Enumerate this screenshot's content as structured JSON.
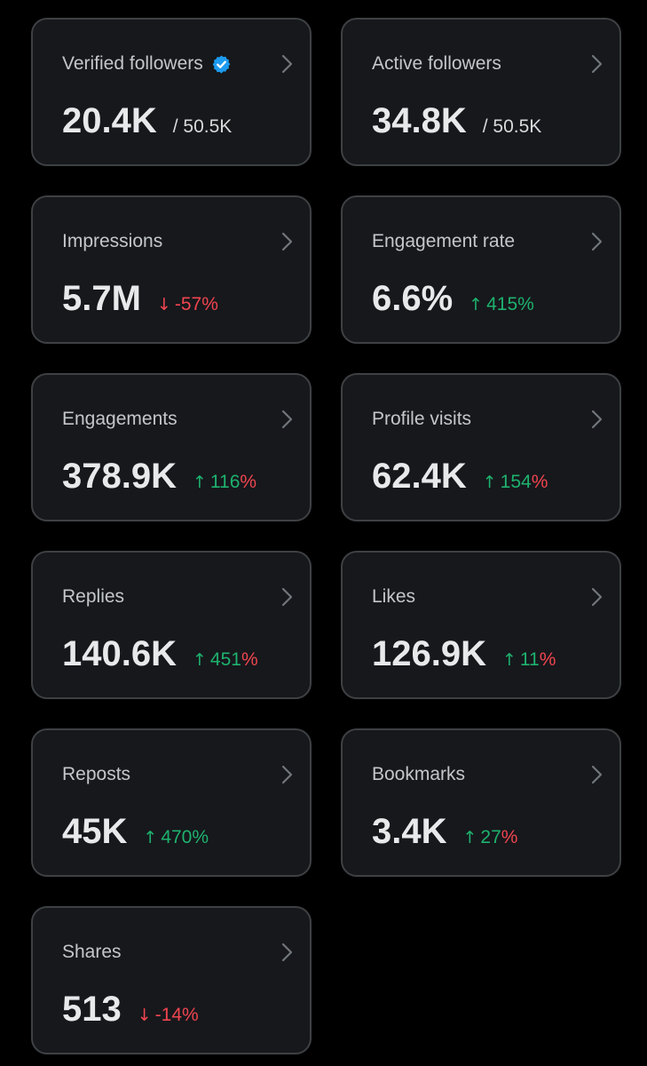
{
  "colors": {
    "background": "#000000",
    "card": "#16181c",
    "card_border": "#3e4144",
    "up": "#1eb26e",
    "down": "#f0454f",
    "verified": "#1d9bf0"
  },
  "cards": [
    {
      "title": "Verified followers",
      "verified": true,
      "value": "20.4K",
      "sub": "/ 50.5K"
    },
    {
      "title": "Active followers",
      "value": "34.8K",
      "sub": "/ 50.5K"
    },
    {
      "title": "Impressions",
      "value": "5.7M",
      "direction": "down",
      "change_arrow": "↓",
      "change_number": "-57",
      "change_unit": "%"
    },
    {
      "title": "Engagement rate",
      "value": "6.6%",
      "direction": "up",
      "change_arrow": "↑",
      "change_number": "415",
      "change_unit": "%",
      "unit_color": "up"
    },
    {
      "title": "Engagements",
      "value": "378.9K",
      "direction": "up",
      "change_arrow": "↑",
      "change_number": "116",
      "change_unit": "%",
      "unit_color": "down"
    },
    {
      "title": "Profile visits",
      "value": "62.4K",
      "direction": "up",
      "change_arrow": "↑",
      "change_number": "154",
      "change_unit": "%",
      "unit_color": "down"
    },
    {
      "title": "Replies",
      "value": "140.6K",
      "direction": "up",
      "change_arrow": "↑",
      "change_number": "451",
      "change_unit": "%",
      "unit_color": "down"
    },
    {
      "title": "Likes",
      "value": "126.9K",
      "direction": "up",
      "change_arrow": "↑",
      "change_number": "11",
      "change_unit": "%",
      "unit_color": "down"
    },
    {
      "title": "Reposts",
      "value": "45K",
      "direction": "up",
      "change_arrow": "↑",
      "change_number": "470",
      "change_unit": "%",
      "unit_color": "up"
    },
    {
      "title": "Bookmarks",
      "value": "3.4K",
      "direction": "up",
      "change_arrow": "↑",
      "change_number": "27",
      "change_unit": "%",
      "unit_color": "down"
    },
    {
      "title": "Shares",
      "value": "513",
      "direction": "down",
      "change_arrow": "↓",
      "change_number": "-14",
      "change_unit": "%",
      "unit_color": "down"
    }
  ]
}
